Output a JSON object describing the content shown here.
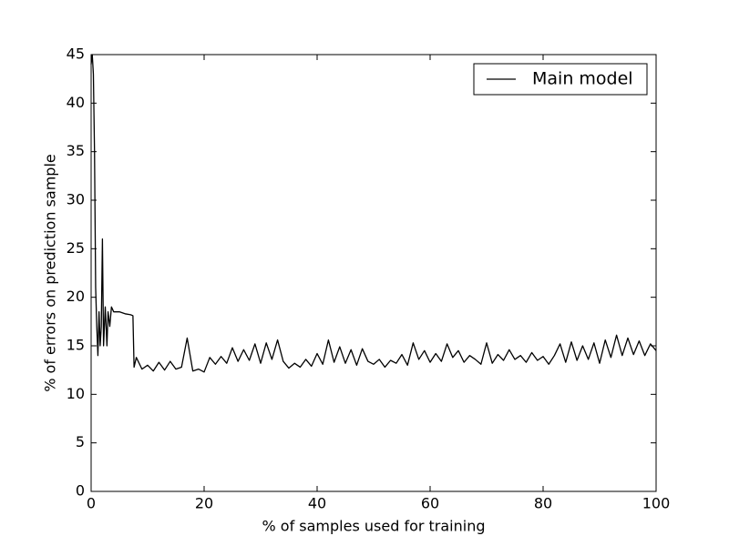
{
  "chart_data": {
    "type": "line",
    "xlabel": "% of samples used for training",
    "ylabel": "% of errors on prediction sample",
    "x": [
      0,
      0.2,
      0.4,
      0.6,
      0.8,
      1.0,
      1.2,
      1.4,
      1.6,
      1.8,
      2.0,
      2.2,
      2.5,
      2.8,
      3.0,
      3.3,
      3.6,
      4,
      5,
      6,
      7,
      7.4,
      7.6,
      8,
      9,
      10,
      11,
      12,
      13,
      14,
      15,
      16,
      17,
      18,
      19,
      20,
      21,
      22,
      23,
      24,
      25,
      26,
      27,
      28,
      29,
      30,
      31,
      32,
      33,
      34,
      35,
      36,
      37,
      38,
      39,
      40,
      41,
      42,
      43,
      44,
      45,
      46,
      47,
      48,
      49,
      50,
      51,
      52,
      53,
      54,
      55,
      56,
      57,
      58,
      59,
      60,
      61,
      62,
      63,
      64,
      65,
      66,
      67,
      68,
      69,
      70,
      71,
      72,
      73,
      74,
      75,
      76,
      77,
      78,
      79,
      80,
      81,
      82,
      83,
      84,
      85,
      86,
      87,
      88,
      89,
      90,
      91,
      92,
      93,
      94,
      95,
      96,
      97,
      98,
      99,
      100
    ],
    "series": [
      {
        "name": "Main model",
        "color": "#000000",
        "values": [
          44,
          45,
          43,
          35,
          21,
          17,
          14,
          18.5,
          15,
          17,
          26,
          15,
          19,
          15,
          18.5,
          17,
          19,
          18.5,
          18.5,
          18.3,
          18.2,
          18.1,
          12.8,
          13.8,
          12.6,
          13,
          12.4,
          13.3,
          12.5,
          13.4,
          12.6,
          12.8,
          15.8,
          12.4,
          12.6,
          12.3,
          13.8,
          13.1,
          13.9,
          13.2,
          14.8,
          13.4,
          14.6,
          13.5,
          15.2,
          13.2,
          15.3,
          13.6,
          15.6,
          13.4,
          12.7,
          13.2,
          12.8,
          13.6,
          12.9,
          14.2,
          13.1,
          15.6,
          13.3,
          14.9,
          13.2,
          14.6,
          13.0,
          14.7,
          13.4,
          13.1,
          13.6,
          12.8,
          13.5,
          13.2,
          14.1,
          13.0,
          15.3,
          13.6,
          14.5,
          13.3,
          14.2,
          13.4,
          15.2,
          13.8,
          14.5,
          13.3,
          14.0,
          13.6,
          13.1,
          15.3,
          13.2,
          14.1,
          13.5,
          14.6,
          13.6,
          14.0,
          13.3,
          14.3,
          13.5,
          13.9,
          13.1,
          14.0,
          15.2,
          13.3,
          15.4,
          13.5,
          15.0,
          13.6,
          15.3,
          13.2,
          15.6,
          13.8,
          16.1,
          14.0,
          15.8,
          14.1,
          15.5,
          14.0,
          15.2,
          14.5
        ]
      }
    ],
    "xlim": [
      0,
      100
    ],
    "xticks": [
      0,
      20,
      40,
      60,
      80,
      100
    ],
    "ylim": [
      0,
      45
    ],
    "yticks": [
      0,
      5,
      10,
      15,
      20,
      25,
      30,
      35,
      40,
      45
    ],
    "grid": false,
    "legend": "upper right"
  }
}
